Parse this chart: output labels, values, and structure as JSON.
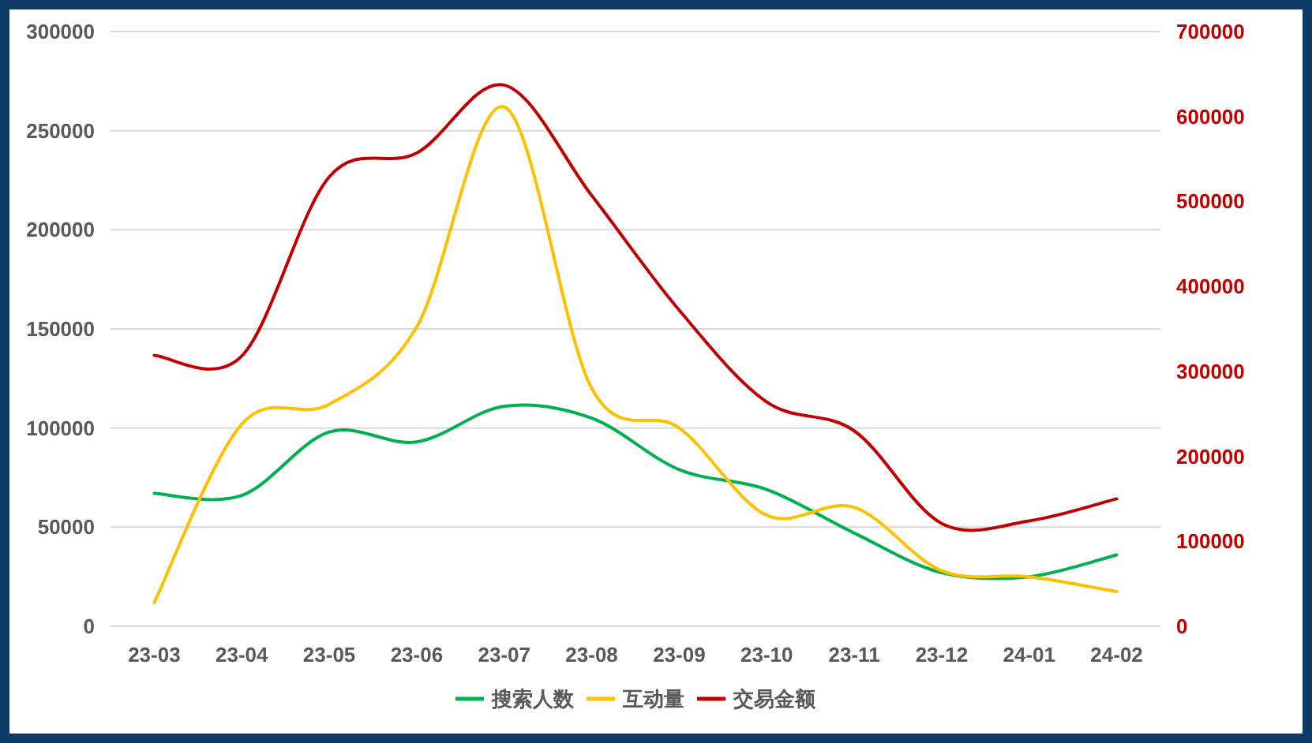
{
  "chart_data": {
    "type": "line",
    "categories": [
      "23-03",
      "23-04",
      "23-05",
      "23-06",
      "23-07",
      "23-08",
      "23-09",
      "23-10",
      "23-11",
      "23-12",
      "24-01",
      "24-02"
    ],
    "series": [
      {
        "name": "搜索人数",
        "color": "#00b050",
        "values": [
          67000,
          66000,
          98000,
          93000,
          111000,
          105000,
          79000,
          69000,
          47000,
          27000,
          25000,
          36000
        ]
      },
      {
        "name": "互动量",
        "color": "#ffc000",
        "values": [
          12000,
          102000,
          112000,
          151000,
          262000,
          120000,
          100000,
          56000,
          60000,
          28000,
          25000,
          17500
        ]
      },
      {
        "name": "交易金额",
        "color": "#c00000",
        "axis": "y2",
        "values": [
          319000,
          318000,
          529000,
          557000,
          637000,
          507000,
          372000,
          264000,
          230000,
          121000,
          124000,
          150000
        ]
      }
    ],
    "ylim": [
      0,
      300000
    ],
    "yticks": [
      0,
      50000,
      100000,
      150000,
      200000,
      250000,
      300000
    ],
    "y2lim": [
      0,
      700000
    ],
    "y2ticks": [
      0,
      100000,
      200000,
      300000,
      400000,
      500000,
      600000,
      700000
    ],
    "grid": "y",
    "legend": "bottom"
  }
}
